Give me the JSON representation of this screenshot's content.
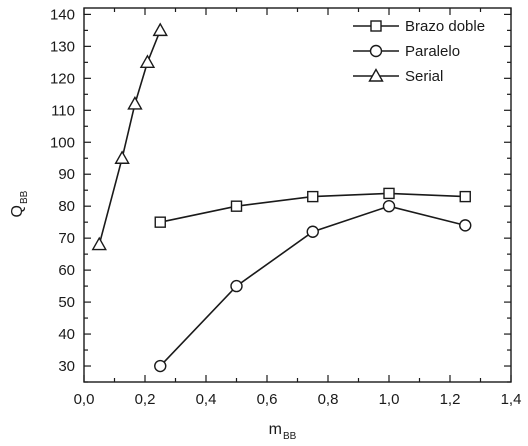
{
  "chart_data": {
    "type": "line",
    "xlabel": {
      "main": "m",
      "sub": "BB"
    },
    "ylabel": {
      "main": "Q",
      "sub": "BB"
    },
    "xlim": [
      0.0,
      1.4
    ],
    "ylim": [
      25,
      142
    ],
    "x_ticks": [
      0.0,
      0.2,
      0.4,
      0.6,
      0.8,
      1.0,
      1.2,
      1.4
    ],
    "x_tick_labels": [
      "0,0",
      "0,2",
      "0,4",
      "0,6",
      "0,8",
      "1,0",
      "1,2",
      "1,4"
    ],
    "y_ticks": [
      30,
      40,
      50,
      60,
      70,
      80,
      90,
      100,
      110,
      120,
      130,
      140
    ],
    "y_tick_labels": [
      "30",
      "40",
      "50",
      "60",
      "70",
      "80",
      "90",
      "100",
      "110",
      "120",
      "130",
      "140"
    ],
    "grid": false,
    "legend_position": "top-right",
    "series": [
      {
        "name": "Brazo doble",
        "marker": "square",
        "x": [
          0.25,
          0.5,
          0.75,
          1.0,
          1.25
        ],
        "y": [
          75,
          80,
          83,
          84,
          83
        ]
      },
      {
        "name": "Paralelo",
        "marker": "circle",
        "x": [
          0.25,
          0.5,
          0.75,
          1.0,
          1.25
        ],
        "y": [
          30,
          55,
          72,
          80,
          74
        ]
      },
      {
        "name": "Serial",
        "marker": "triangle",
        "x": [
          0.05,
          0.125,
          0.167,
          0.208,
          0.25
        ],
        "y": [
          68,
          95,
          112,
          125,
          135
        ]
      }
    ]
  }
}
